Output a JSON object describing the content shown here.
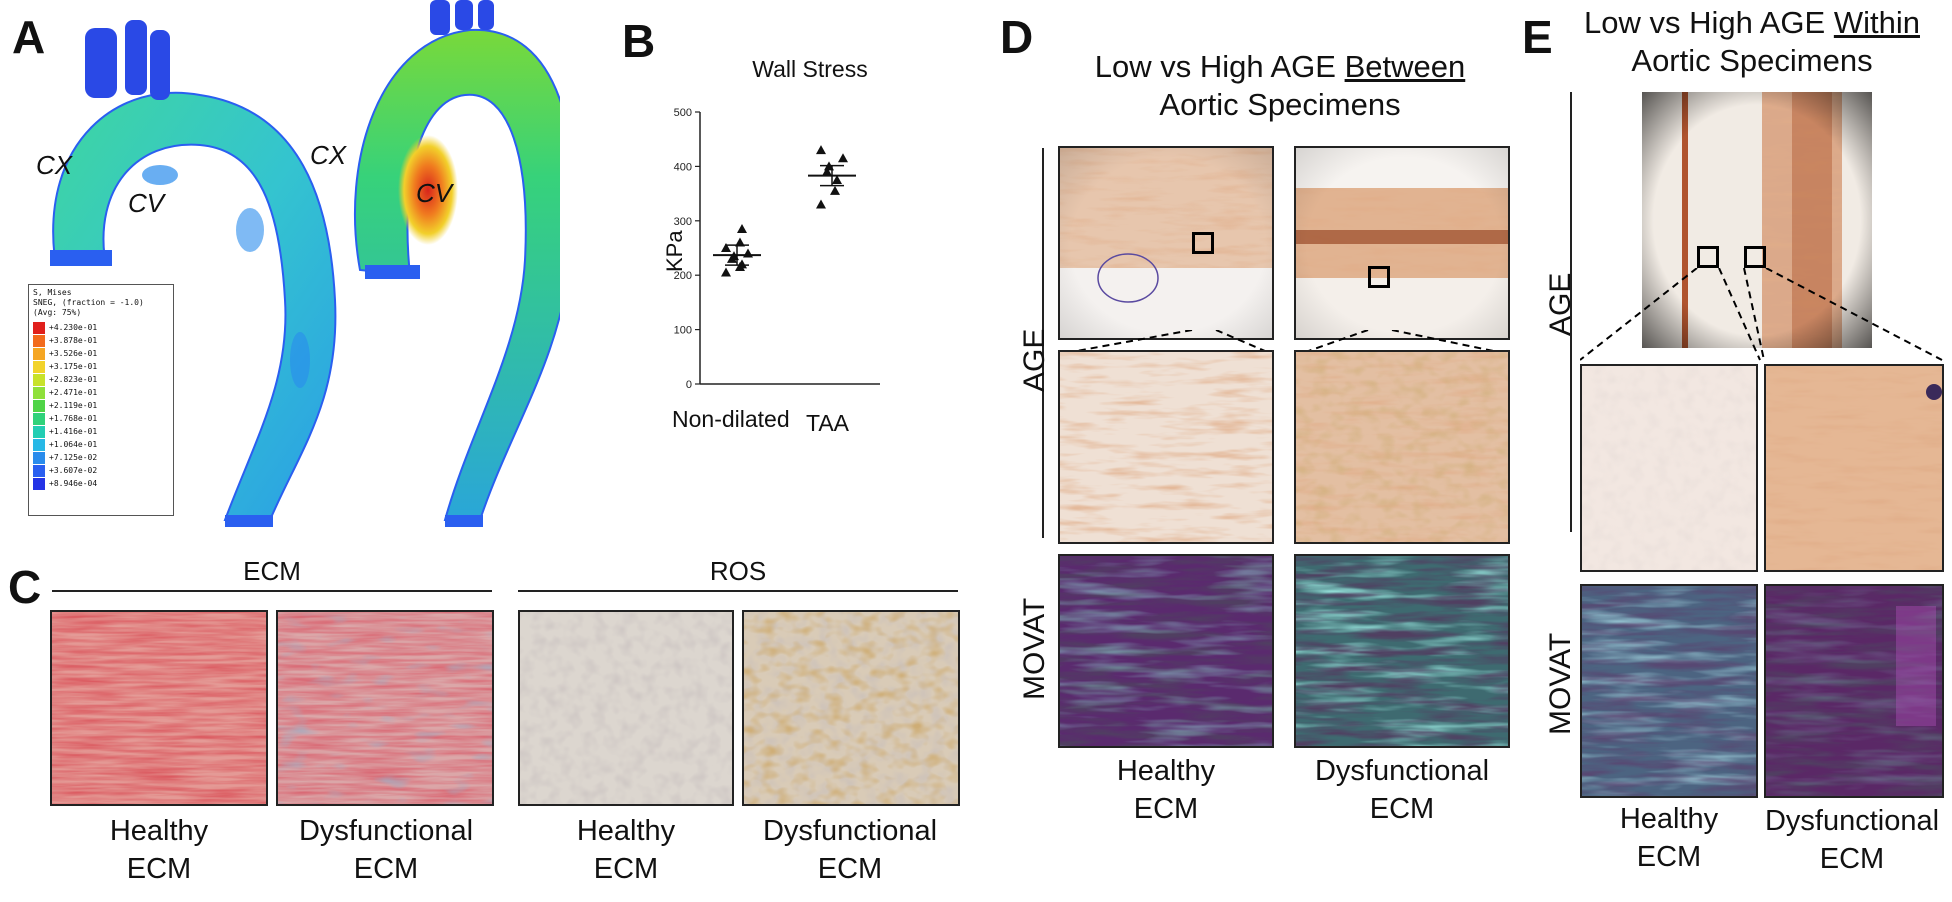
{
  "labels": {
    "A": "A",
    "B": "B",
    "C": "C",
    "D": "D",
    "E": "E"
  },
  "panelA": {
    "cx_left": "CX",
    "cv_left": "CV",
    "cx_right": "CX",
    "cv_right": "CV",
    "legend": {
      "header": [
        "S, Mises",
        "SNEG, (fraction = -1.0)",
        "(Avg: 75%)"
      ],
      "entries": [
        "+4.230e-01",
        "+3.878e-01",
        "+3.526e-01",
        "+3.175e-01",
        "+2.823e-01",
        "+2.471e-01",
        "+2.119e-01",
        "+1.768e-01",
        "+1.416e-01",
        "+1.064e-01",
        "+7.125e-02",
        "+3.607e-02",
        "+8.946e-04"
      ],
      "colors": [
        "#e0201c",
        "#f26b1d",
        "#f5a623",
        "#f2d32b",
        "#c8e22a",
        "#8fe03a",
        "#4fd447",
        "#2fd27a",
        "#22cdb3",
        "#27b8e6",
        "#2a8cec",
        "#2a5ff0",
        "#2433e6"
      ]
    }
  },
  "panelB": {
    "title": "Wall Stress",
    "ylabel": "KPa",
    "categories": [
      "Non-dilated",
      "TAA"
    ]
  },
  "chart_data": {
    "type": "scatter",
    "title": "Wall Stress",
    "ylabel": "KPa",
    "categories": [
      "Non-dilated",
      "TAA"
    ],
    "ylim": [
      0,
      500
    ],
    "yticks": [
      0,
      100,
      200,
      300,
      400,
      500
    ],
    "series": [
      {
        "category": "Non-dilated",
        "values": [
          205,
          215,
          220,
          230,
          235,
          240,
          250,
          260,
          285
        ],
        "mean": 237
      },
      {
        "category": "TAA",
        "values": [
          330,
          355,
          375,
          390,
          400,
          415,
          430
        ],
        "mean": 383
      }
    ]
  },
  "panelC": {
    "ecm_header": "ECM",
    "ros_header": "ROS",
    "caps": [
      [
        "Healthy",
        "ECM"
      ],
      [
        "Dysfunctional",
        "ECM"
      ],
      [
        "Healthy",
        "ECM"
      ],
      [
        "Dysfunctional",
        "ECM"
      ]
    ]
  },
  "panelD": {
    "title_pre": "Low vs High AGE ",
    "title_u": "Between",
    "title_line2": "Aortic Specimens",
    "row_age": "AGE",
    "row_movat": "MOVAT",
    "caps": [
      [
        "Healthy",
        "ECM"
      ],
      [
        "Dysfunctional",
        "ECM"
      ]
    ]
  },
  "panelE": {
    "title_pre": "Low vs High AGE ",
    "title_u": "Within",
    "title_line2": "Aortic Specimens",
    "row_age": "AGE",
    "row_movat": "MOVAT",
    "caps": [
      [
        "Healthy",
        "ECM"
      ],
      [
        "Dysfunctional",
        "ECM"
      ]
    ]
  }
}
